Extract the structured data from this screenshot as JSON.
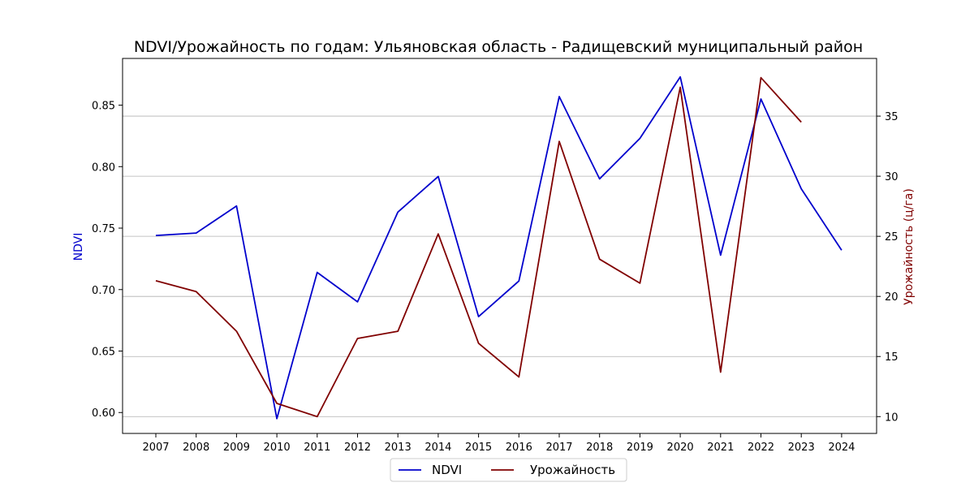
{
  "chart_data": {
    "type": "line",
    "title": "NDVI/Урожайность по годам: Ульяновская область - Радищевский муниципальный район",
    "xlabel": "",
    "x": [
      "2007",
      "2008",
      "2009",
      "2010",
      "2011",
      "2012",
      "2013",
      "2014",
      "2015",
      "2016",
      "2017",
      "2018",
      "2019",
      "2020",
      "2021",
      "2022",
      "2023",
      "2024"
    ],
    "left_axis": {
      "label": "NDVI",
      "color": "#0000cc",
      "ylim": [
        0.583,
        0.888
      ],
      "ticks": [
        "0.60",
        "0.65",
        "0.70",
        "0.75",
        "0.80",
        "0.85"
      ]
    },
    "right_axis": {
      "label": "Урожайность (ц/га)",
      "color": "#800000",
      "ylim": [
        8.6,
        39.8
      ],
      "ticks": [
        "10",
        "15",
        "20",
        "25",
        "30",
        "35"
      ],
      "grid": true
    },
    "series": [
      {
        "name": "NDVI",
        "axis": "left",
        "color": "#0000cc",
        "values": [
          0.744,
          0.746,
          0.768,
          0.595,
          0.714,
          0.69,
          0.763,
          0.792,
          0.678,
          0.707,
          0.857,
          0.79,
          0.823,
          0.873,
          0.728,
          0.855,
          0.782,
          0.732
        ]
      },
      {
        "name": "Урожайность",
        "axis": "right",
        "color": "#800000",
        "values": [
          21.3,
          20.4,
          17.1,
          11.1,
          10.0,
          16.5,
          17.1,
          25.2,
          16.1,
          13.3,
          32.9,
          23.1,
          21.1,
          37.4,
          13.7,
          38.2,
          34.5,
          null
        ]
      }
    ],
    "legend": {
      "position": "bottom-center"
    }
  }
}
